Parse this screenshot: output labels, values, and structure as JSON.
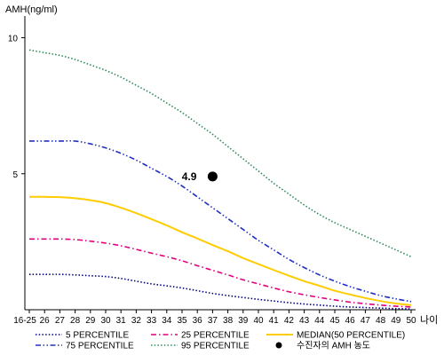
{
  "chart_data": {
    "type": "line",
    "ylabel": "AMH(ng/ml)",
    "xlabel": "나이",
    "x_labels": [
      "16-25",
      "26",
      "27",
      "28",
      "29",
      "30",
      "31",
      "32",
      "33",
      "34",
      "35",
      "36",
      "37",
      "38",
      "39",
      "40",
      "41",
      "42",
      "43",
      "44",
      "45",
      "46",
      "47",
      "48",
      "49",
      "50"
    ],
    "y_ticks": [
      5,
      10
    ],
    "ylim": [
      0,
      10.8
    ],
    "series": [
      {
        "name": "5 PERCENTILE",
        "color": "#000080",
        "dash": "dot",
        "values": [
          1.3,
          1.3,
          1.3,
          1.28,
          1.25,
          1.22,
          1.15,
          1.05,
          0.95,
          0.88,
          0.8,
          0.7,
          0.6,
          0.52,
          0.45,
          0.38,
          0.32,
          0.26,
          0.21,
          0.17,
          0.13,
          0.1,
          0.08,
          0.06,
          0.04,
          0.03
        ]
      },
      {
        "name": "25 PERCENTILE",
        "color": "#e0007f",
        "dash": "dashdot",
        "values": [
          2.6,
          2.6,
          2.6,
          2.58,
          2.52,
          2.45,
          2.35,
          2.22,
          2.08,
          1.95,
          1.8,
          1.62,
          1.45,
          1.28,
          1.1,
          0.95,
          0.8,
          0.66,
          0.55,
          0.45,
          0.36,
          0.28,
          0.22,
          0.17,
          0.13,
          0.1
        ]
      },
      {
        "name": "MEDIAN(50 PERCENTILE)",
        "color": "#ffcc00",
        "dash": "solid",
        "values": [
          4.15,
          4.15,
          4.14,
          4.1,
          4.03,
          3.92,
          3.75,
          3.55,
          3.33,
          3.1,
          2.85,
          2.62,
          2.38,
          2.15,
          1.9,
          1.68,
          1.46,
          1.25,
          1.05,
          0.88,
          0.7,
          0.56,
          0.43,
          0.32,
          0.23,
          0.17
        ]
      },
      {
        "name": "75 PERCENTILE",
        "color": "#2030c0",
        "dash": "dashdotdot",
        "values": [
          6.2,
          6.2,
          6.2,
          6.2,
          6.1,
          5.95,
          5.75,
          5.5,
          5.2,
          4.9,
          4.55,
          4.15,
          3.75,
          3.35,
          2.95,
          2.55,
          2.2,
          1.85,
          1.55,
          1.28,
          1.05,
          0.85,
          0.68,
          0.52,
          0.4,
          0.3
        ]
      },
      {
        "name": "95 PERCENTILE",
        "color": "#2e8b57",
        "dash": "dot",
        "values": [
          9.55,
          9.45,
          9.35,
          9.2,
          9.0,
          8.8,
          8.55,
          8.25,
          7.95,
          7.6,
          7.25,
          6.85,
          6.45,
          6.0,
          5.55,
          5.1,
          4.65,
          4.25,
          3.85,
          3.5,
          3.2,
          2.95,
          2.7,
          2.45,
          2.2,
          1.95
        ]
      }
    ],
    "point": {
      "x_index": 12,
      "value": 4.9,
      "label": "4.9",
      "name": "수진자의 AMH 농도",
      "color": "#000000"
    }
  }
}
